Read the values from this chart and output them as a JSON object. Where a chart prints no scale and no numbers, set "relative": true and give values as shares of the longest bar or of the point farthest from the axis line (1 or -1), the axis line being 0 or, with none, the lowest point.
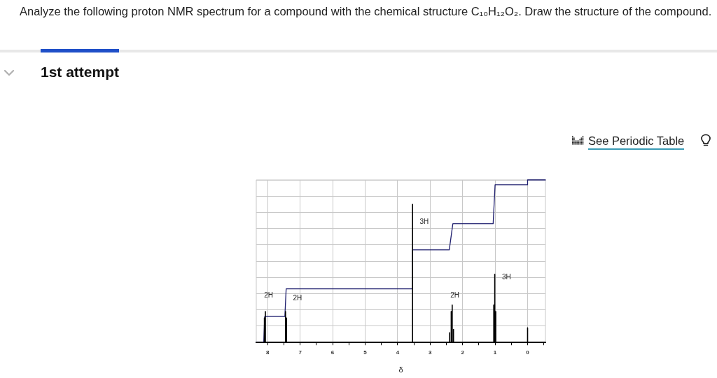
{
  "chart_data": {
    "type": "line",
    "title": "Analyze the following proton NMR spectrum for a compound with the chemical structure C₁₀H₁₂O₂. Draw the structure of the compound.",
    "subtitle": "1st attempt",
    "xlabel": "δ",
    "relative": true,
    "xlim": [
      8.35,
      -0.55
    ],
    "xticks": [
      8,
      {
        "value": 7.5,
        "label": null
      },
      7,
      {
        "value": 6.5,
        "label": null
      },
      6,
      {
        "value": 5.5,
        "label": null
      },
      5,
      {
        "value": 4.5,
        "label": null
      },
      4,
      {
        "value": 3.5,
        "label": null
      },
      3,
      {
        "value": 2.5,
        "label": null
      },
      2,
      {
        "value": 1.5,
        "label": null
      },
      1,
      {
        "value": 0.5,
        "label": null
      },
      0,
      {
        "value": -0.5,
        "label": null
      }
    ],
    "grid": true,
    "series": [
      {
        "color": "#000000",
        "x": [
          8.35,
          8.1,
          8.1,
          8.1,
          8.07,
          8.07,
          8.07,
          7.45,
          7.45,
          7.45,
          7.42,
          7.42,
          7.42,
          3.54,
          3.54,
          3.54,
          2.4,
          2.4,
          2.4,
          2.35,
          2.35,
          2.35,
          2.32,
          2.32,
          2.32,
          2.28,
          2.28,
          2.28,
          1.04,
          1.04,
          1.04,
          1.01,
          1.01,
          1.01,
          0.98,
          0.98,
          0.98,
          0,
          0,
          0,
          -0.55
        ],
        "values": [
          0,
          0,
          0.15,
          0,
          0,
          0.19,
          0,
          0,
          0.19,
          0,
          0,
          0.15,
          0,
          0,
          0.85,
          0,
          0,
          0.06,
          0,
          0,
          0.19,
          0,
          0,
          0.23,
          0,
          0,
          0.08,
          0,
          0,
          0.23,
          0,
          0,
          0.42,
          0,
          0,
          0.19,
          0,
          0,
          0.09,
          0,
          0
        ]
      },
      {
        "color": "#1e1e6e",
        "x": [
          8.35,
          8.12,
          8.09,
          7.47,
          7.43,
          3.54,
          3.54,
          2.41,
          2.3,
          1.06,
          1.0,
          0,
          0,
          -0.55
        ],
        "values": [
          0,
          0,
          0.16,
          0.16,
          0.33,
          0.33,
          0.57,
          0.57,
          0.73,
          0.73,
          0.97,
          0.97,
          1,
          1
        ]
      }
    ],
    "annotations": [
      "2H",
      "2H",
      "3H",
      "2H",
      "3H",
      "See Periodic Table"
    ]
  }
}
